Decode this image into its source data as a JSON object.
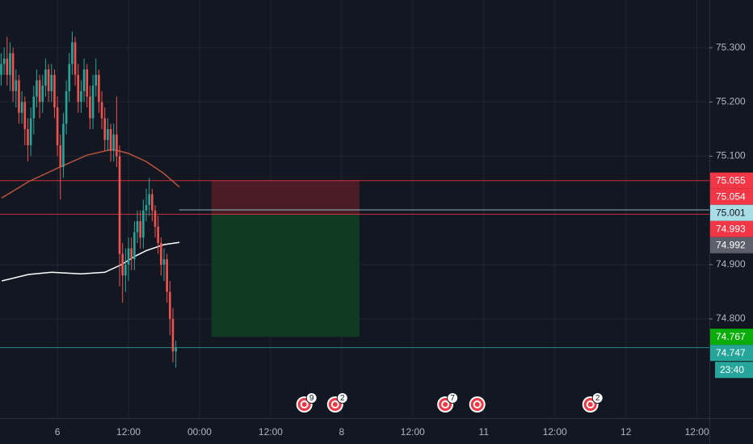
{
  "chart_data": {
    "type": "candlestick",
    "x": [
      -9.5,
      -9,
      -8.5,
      -8,
      -7.5,
      -7,
      -6.5,
      -6,
      -5.5,
      -5,
      -4.5,
      -4,
      -3.5,
      -3,
      -2.5,
      -2,
      -1.5,
      -1,
      -0.5,
      0,
      0.5,
      1,
      1.5,
      2,
      2.5,
      3,
      3.5,
      4,
      4.5,
      5,
      5.5,
      6,
      6.5,
      7,
      7.5,
      8,
      8.5,
      9,
      9.5,
      10,
      10.5,
      11,
      11.5,
      12,
      12.5,
      13,
      13.5,
      14,
      14.5,
      15,
      15.5,
      16,
      16.5,
      17,
      17.5,
      18,
      18.5,
      19,
      19.5,
      20
    ],
    "open": [
      75.25,
      75.27,
      75.28,
      75.25,
      75.29,
      75.22,
      75.24,
      75.18,
      75.2,
      75.15,
      75.12,
      75.17,
      75.21,
      75.24,
      75.2,
      75.23,
      75.26,
      75.22,
      75.25,
      75.19,
      75.12,
      75.08,
      75.16,
      75.22,
      75.27,
      75.31,
      75.25,
      75.2,
      75.22,
      75.26,
      75.21,
      75.17,
      75.23,
      75.25,
      75.2,
      75.17,
      75.13,
      75.15,
      75.11,
      75.14,
      75.1,
      74.92,
      74.88,
      74.9,
      74.93,
      74.91,
      74.96,
      74.98,
      74.95,
      75.0,
      75.01,
      75.03,
      75.0,
      74.97,
      74.94,
      74.9,
      74.91,
      74.85,
      74.8,
      74.74
    ],
    "high": [
      75.29,
      75.3,
      75.32,
      75.31,
      75.3,
      75.26,
      75.25,
      75.22,
      75.21,
      75.17,
      75.19,
      75.23,
      75.26,
      75.25,
      75.25,
      75.28,
      75.27,
      75.27,
      75.26,
      75.21,
      75.14,
      75.18,
      75.24,
      75.29,
      75.33,
      75.32,
      75.27,
      75.24,
      75.28,
      75.27,
      75.23,
      75.25,
      75.28,
      75.26,
      75.22,
      75.19,
      75.17,
      75.16,
      75.16,
      75.21,
      75.12,
      74.94,
      74.93,
      74.95,
      74.95,
      74.98,
      75.0,
      75.0,
      75.02,
      75.04,
      75.06,
      75.04,
      75.01,
      74.99,
      74.95,
      74.93,
      74.92,
      74.87,
      74.82,
      74.76
    ],
    "low": [
      75.23,
      75.25,
      75.23,
      75.22,
      75.2,
      75.19,
      75.16,
      75.16,
      75.12,
      75.09,
      75.1,
      75.14,
      75.19,
      75.17,
      75.18,
      75.21,
      75.2,
      75.2,
      75.17,
      75.1,
      75.02,
      75.06,
      75.14,
      75.2,
      75.25,
      75.23,
      75.18,
      75.18,
      75.2,
      75.19,
      75.15,
      75.15,
      75.21,
      75.18,
      75.15,
      75.11,
      75.11,
      75.09,
      75.09,
      75.08,
      74.86,
      74.83,
      74.85,
      74.87,
      74.89,
      74.89,
      74.94,
      74.93,
      74.93,
      74.98,
      74.99,
      74.98,
      74.95,
      74.92,
      74.88,
      74.87,
      74.83,
      74.77,
      74.72,
      74.71
    ],
    "close": [
      75.27,
      75.28,
      75.25,
      75.29,
      75.22,
      75.24,
      75.18,
      75.2,
      75.15,
      75.12,
      75.17,
      75.21,
      75.24,
      75.2,
      75.23,
      75.26,
      75.22,
      75.25,
      75.19,
      75.12,
      75.08,
      75.16,
      75.22,
      75.27,
      75.31,
      75.25,
      75.2,
      75.22,
      75.26,
      75.21,
      75.17,
      75.23,
      75.25,
      75.2,
      75.17,
      75.13,
      75.15,
      75.11,
      75.14,
      75.1,
      74.92,
      74.88,
      74.9,
      74.93,
      74.91,
      74.96,
      74.98,
      74.95,
      75.0,
      75.01,
      75.03,
      75.0,
      74.97,
      74.94,
      74.9,
      74.91,
      74.85,
      74.8,
      74.74,
      74.747
    ],
    "up_color": "#26a69a",
    "down_color": "#ef5350",
    "xlim": [
      -9.7,
      110.1
    ],
    "ylim": [
      74.617,
      75.388
    ],
    "xticks": [
      {
        "value": 0,
        "label": "6"
      },
      {
        "value": 12,
        "label": "12:00"
      },
      {
        "value": 24,
        "label": "00:00"
      },
      {
        "value": 36,
        "label": "12:00"
      },
      {
        "value": 48,
        "label": "8"
      },
      {
        "value": 60,
        "label": "12:00"
      },
      {
        "value": 72,
        "label": "11"
      },
      {
        "value": 84,
        "label": "12:00"
      },
      {
        "value": 96,
        "label": "12"
      },
      {
        "value": 108,
        "label": "12:00"
      }
    ],
    "yticks": [
      {
        "value": 74.8,
        "label": "74.800"
      },
      {
        "value": 74.9,
        "label": "74.900"
      },
      {
        "value": 75.1,
        "label": "75.100"
      },
      {
        "value": 75.2,
        "label": "75.200"
      },
      {
        "value": 75.3,
        "label": "75.300"
      }
    ],
    "grid": true,
    "lines": [
      {
        "color": "#b5533c",
        "x": [
          -9.4,
          -4.9,
          0,
          5,
          9,
          10,
          12,
          15,
          18,
          20.6
        ],
        "values": [
          75.023,
          75.053,
          75.078,
          75.102,
          75.112,
          75.111,
          75.105,
          75.09,
          75.068,
          75.043
        ]
      },
      {
        "color": "#ffffff",
        "x": [
          -9.4,
          -4.9,
          -1,
          4,
          8,
          10.8,
          13,
          15,
          18,
          20.6
        ],
        "values": [
          74.87,
          74.882,
          74.886,
          74.883,
          74.886,
          74.9,
          74.915,
          74.926,
          74.937,
          74.941
        ]
      }
    ],
    "position": {
      "x": [
        26,
        51
      ],
      "stop": 75.055,
      "entry": 74.993,
      "target": 74.767,
      "stop_color": "#4a1d26",
      "target_color": "#103a22"
    },
    "price_labels": [
      {
        "value": 75.055,
        "color": "#f23645",
        "text_color": "#ffffff",
        "line": true
      },
      {
        "value": 75.054,
        "color": "#f23645",
        "text_color": "#ffffff",
        "line": false
      },
      {
        "value": 75.001,
        "color": "#a8dde6",
        "text_color": "#131722",
        "line": true
      },
      {
        "value": 74.993,
        "color": "#f23645",
        "text_color": "#ffffff",
        "line": true
      },
      {
        "value": 74.992,
        "color": "#5d606b",
        "text_color": "#ffffff",
        "line": false
      },
      {
        "value": 74.767,
        "color": "#0bad0b",
        "text_color": "#ffffff",
        "line": false
      },
      {
        "value": 74.747,
        "color": "#26a69a",
        "text_color": "#ffffff",
        "line": true,
        "countdown": "23:40"
      }
    ],
    "events": [
      {
        "x": 41.7,
        "count": 9
      },
      {
        "x": 46.9,
        "count": 2
      },
      {
        "x": 65.5,
        "count": 7
      },
      {
        "x": 70.9
      },
      {
        "x": 90,
        "count": 2
      }
    ]
  }
}
